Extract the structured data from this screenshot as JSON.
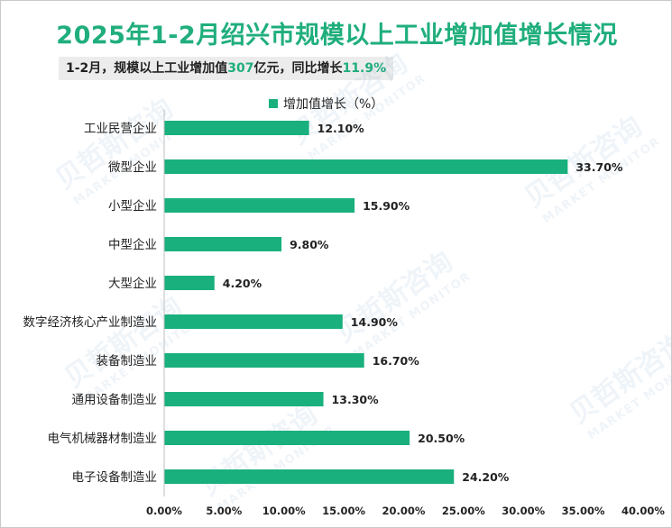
{
  "title": "2025年1-2月绍兴市规模以上工业增加值增长情况",
  "summary": {
    "prefix": "1-2月，规模以上工业增加值",
    "value": "307",
    "middle": "亿元，同比增长",
    "growth": "11.9%"
  },
  "chart_data": {
    "type": "bar",
    "orientation": "horizontal",
    "legend": "增加值增长（%）",
    "categories": [
      "工业民营企业",
      "微型企业",
      "小型企业",
      "中型企业",
      "大型企业",
      "数字经济核心产业制造业",
      "装备制造业",
      "通用设备制造业",
      "电气机械器材制造业",
      "电子设备制造业"
    ],
    "values": [
      12.1,
      33.7,
      15.9,
      9.8,
      4.2,
      14.9,
      16.7,
      13.3,
      20.5,
      24.2
    ],
    "value_labels": [
      "12.10%",
      "33.70%",
      "15.90%",
      "9.80%",
      "4.20%",
      "14.90%",
      "16.70%",
      "13.30%",
      "20.50%",
      "24.20%"
    ],
    "xlim": [
      0,
      40
    ],
    "x_ticks": [
      "0.00%",
      "5.00%",
      "10.00%",
      "15.00%",
      "20.00%",
      "25.00%",
      "30.00%",
      "35.00%",
      "40.00%"
    ],
    "bar_color": "#19b07d"
  },
  "watermark": {
    "cn": "贝哲斯咨询",
    "en": "MARKET MONITOR"
  }
}
